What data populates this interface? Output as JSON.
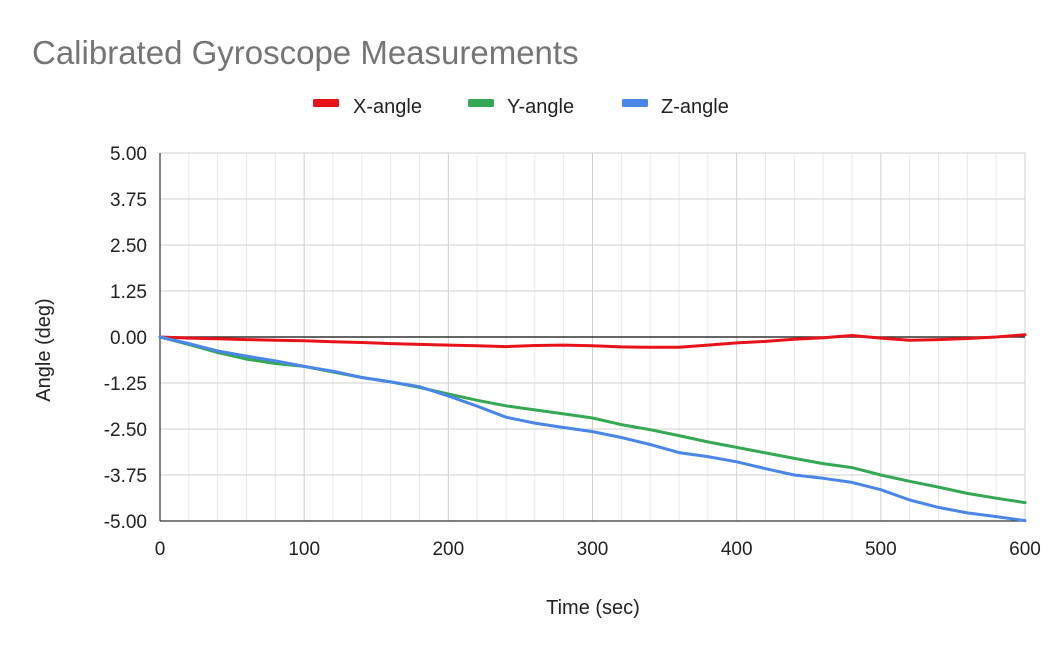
{
  "chart_data": {
    "type": "line",
    "title": "Calibrated Gyroscope Measurements",
    "xlabel": "Time (sec)",
    "ylabel": "Angle (deg)",
    "xlim": [
      0,
      600
    ],
    "ylim": [
      -5,
      5
    ],
    "x_ticks": [
      "0",
      "100",
      "200",
      "300",
      "400",
      "500",
      "600"
    ],
    "y_ticks": [
      "5.00",
      "3.75",
      "2.50",
      "1.25",
      "0.00",
      "-1.25",
      "-2.50",
      "-3.75",
      "-5.00"
    ],
    "grid": true,
    "legend_position": "top",
    "x": [
      0,
      20,
      40,
      60,
      80,
      100,
      120,
      140,
      160,
      180,
      200,
      220,
      240,
      260,
      280,
      300,
      320,
      340,
      360,
      380,
      400,
      420,
      440,
      460,
      480,
      500,
      520,
      540,
      560,
      580,
      600
    ],
    "series": [
      {
        "name": "X-angle",
        "color": "#e8121b",
        "values": [
          0.0,
          -0.03,
          -0.05,
          -0.07,
          -0.09,
          -0.1,
          -0.13,
          -0.15,
          -0.18,
          -0.2,
          -0.22,
          -0.24,
          -0.26,
          -0.23,
          -0.22,
          -0.24,
          -0.27,
          -0.28,
          -0.28,
          -0.22,
          -0.16,
          -0.12,
          -0.06,
          -0.02,
          0.04,
          -0.03,
          -0.09,
          -0.07,
          -0.04,
          0.0,
          0.06
        ]
      },
      {
        "name": "Y-angle",
        "color": "#34a853",
        "values": [
          0.0,
          -0.2,
          -0.42,
          -0.6,
          -0.72,
          -0.8,
          -0.95,
          -1.1,
          -1.22,
          -1.37,
          -1.55,
          -1.72,
          -1.87,
          -1.98,
          -2.09,
          -2.2,
          -2.38,
          -2.52,
          -2.68,
          -2.85,
          -3.0,
          -3.15,
          -3.3,
          -3.44,
          -3.55,
          -3.75,
          -3.92,
          -4.08,
          -4.25,
          -4.38,
          -4.5
        ]
      },
      {
        "name": "Z-angle",
        "color": "#4a86e8",
        "values": [
          0.0,
          -0.18,
          -0.38,
          -0.52,
          -0.65,
          -0.8,
          -0.93,
          -1.1,
          -1.22,
          -1.35,
          -1.6,
          -1.88,
          -2.18,
          -2.34,
          -2.46,
          -2.57,
          -2.73,
          -2.92,
          -3.14,
          -3.25,
          -3.39,
          -3.58,
          -3.75,
          -3.84,
          -3.95,
          -4.15,
          -4.43,
          -4.63,
          -4.78,
          -4.88,
          -4.99
        ]
      }
    ]
  }
}
